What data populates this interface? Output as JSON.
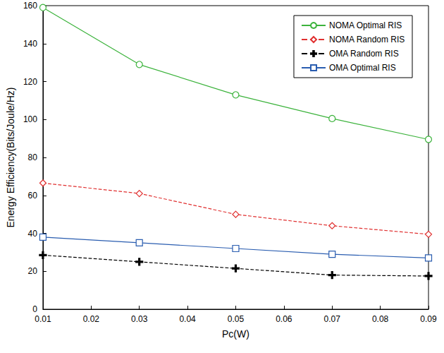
{
  "chart_data": {
    "type": "line",
    "x_label": "Pc(W)",
    "y_label": "Energy Efficiency(Bits/Joule/Hz)",
    "x": [
      0.01,
      0.03,
      0.05,
      0.07,
      0.09
    ],
    "xlim": [
      0.01,
      0.09
    ],
    "xticks": [
      0.01,
      0.02,
      0.03,
      0.04,
      0.05,
      0.06,
      0.07,
      0.08,
      0.09
    ],
    "ylim": [
      0,
      160
    ],
    "yticks": [
      0,
      20,
      40,
      60,
      80,
      100,
      120,
      140,
      160
    ],
    "grid": false,
    "legend": "upper right",
    "series": [
      {
        "name": "NOMA Optimal RIS",
        "color": "#3cb33c",
        "marker": "circle",
        "line_style": "solid",
        "values": [
          159,
          129,
          113,
          100.5,
          89.5
        ]
      },
      {
        "name": "NOMA Random RIS",
        "color": "#e03030",
        "marker": "diamond",
        "line_style": "dashed",
        "values": [
          66.5,
          61,
          50,
          44,
          39.5
        ]
      },
      {
        "name": "OMA Random RIS",
        "color": "#000000",
        "marker": "plus",
        "line_style": "dashed",
        "values": [
          28.5,
          25,
          21.5,
          18,
          17.5
        ]
      },
      {
        "name": "OMA Optimal RIS",
        "color": "#2a5db0",
        "marker": "square",
        "line_style": "solid",
        "values": [
          38,
          35,
          32,
          29,
          27
        ]
      }
    ]
  }
}
